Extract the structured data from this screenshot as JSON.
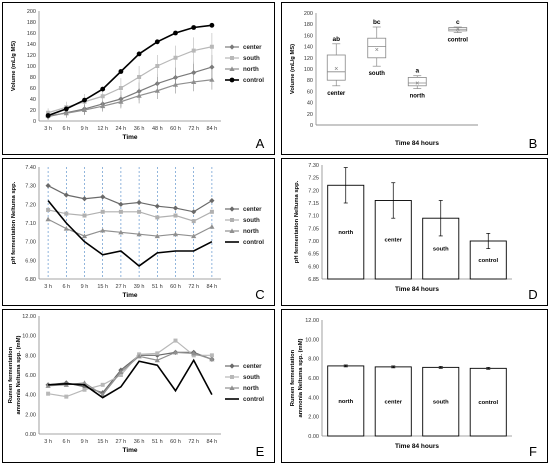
{
  "chart_data": [
    {
      "panel": "A",
      "type": "line",
      "xlabel": "Time",
      "ylabel": "Volume (mL/g MS)",
      "categories": [
        "3 h",
        "6 h",
        "9 h",
        "12 h",
        "24 h",
        "36 h",
        "48 h",
        "60 h",
        "72 h",
        "84 h"
      ],
      "ylim": [
        0,
        200
      ],
      "yticks": [
        0,
        20,
        40,
        60,
        80,
        100,
        120,
        140,
        160,
        180,
        200
      ],
      "legend_position": "right",
      "series": [
        {
          "name": "center",
          "color": "#7a7a7a",
          "marker": "diamond",
          "values": [
            8,
            15,
            22,
            31,
            40,
            54,
            68,
            79,
            88,
            98
          ],
          "err": [
            6,
            8,
            10,
            12,
            14,
            16,
            17,
            18,
            20,
            22
          ]
        },
        {
          "name": "south",
          "color": "#b8b8b8",
          "marker": "square",
          "values": [
            15,
            25,
            35,
            45,
            60,
            80,
            100,
            115,
            128,
            135
          ],
          "err": [
            8,
            10,
            14,
            16,
            18,
            20,
            20,
            22,
            24,
            25
          ]
        },
        {
          "name": "north",
          "color": "#8f8f8f",
          "marker": "triangle",
          "values": [
            10,
            14,
            20,
            27,
            35,
            46,
            55,
            66,
            71,
            75
          ],
          "err": [
            6,
            8,
            9,
            10,
            12,
            14,
            15,
            16,
            17,
            18
          ]
        },
        {
          "name": "control",
          "color": "#000000",
          "marker": "circle",
          "values": [
            10,
            22,
            38,
            58,
            90,
            122,
            144,
            160,
            170,
            174
          ],
          "err": [
            3,
            3,
            4,
            4,
            4,
            4,
            4,
            3,
            3,
            3
          ]
        }
      ]
    },
    {
      "panel": "B",
      "type": "box",
      "xlabel": "Time 84 hours",
      "ylabel": "Volume (mL/g MS)",
      "ylim": [
        0,
        200
      ],
      "yticks": [
        0,
        20,
        40,
        60,
        80,
        100,
        120,
        140,
        160,
        180,
        200
      ],
      "groups": [
        {
          "name": "center",
          "letter": "ab",
          "min": 70,
          "q1": 80,
          "median": 95,
          "q3": 125,
          "max": 145,
          "mean": 101
        },
        {
          "name": "south",
          "letter": "bc",
          "min": 105,
          "q1": 120,
          "median": 140,
          "q3": 155,
          "max": 175,
          "mean": 135
        },
        {
          "name": "north",
          "letter": "a",
          "min": 65,
          "q1": 70,
          "median": 75,
          "q3": 85,
          "max": 88,
          "mean": 75
        },
        {
          "name": "control",
          "letter": "c",
          "min": 165,
          "q1": 168,
          "median": 171,
          "q3": 174,
          "max": 175,
          "mean": 171
        }
      ]
    },
    {
      "panel": "C",
      "type": "line",
      "xlabel": "Time",
      "ylabel": "pH fermentation Neltuma spp.",
      "categories": [
        "3 h",
        "6 h",
        "9 h",
        "15 h",
        "27 h",
        "39 h",
        "51 h",
        "60 h",
        "72 h",
        "84 h"
      ],
      "ylim": [
        6.8,
        7.4
      ],
      "yticks": [
        6.8,
        6.9,
        7.0,
        7.1,
        7.2,
        7.3,
        7.4
      ],
      "legend_position": "right",
      "series": [
        {
          "name": "center",
          "color": "#6a6a6a",
          "marker": "diamond",
          "values": [
            7.3,
            7.25,
            7.23,
            7.24,
            7.2,
            7.21,
            7.19,
            7.18,
            7.16,
            7.22
          ]
        },
        {
          "name": "south",
          "color": "#b0b0b0",
          "marker": "square",
          "values": [
            7.17,
            7.15,
            7.14,
            7.16,
            7.16,
            7.16,
            7.13,
            7.14,
            7.11,
            7.16
          ]
        },
        {
          "name": "north",
          "color": "#909090",
          "marker": "triangle",
          "values": [
            7.12,
            7.07,
            7.03,
            7.06,
            7.05,
            7.04,
            7.03,
            7.04,
            7.03,
            7.08
          ]
        },
        {
          "name": "control",
          "color": "#000000",
          "marker": "none",
          "values": [
            7.22,
            7.1,
            7.0,
            6.93,
            6.95,
            6.87,
            6.94,
            6.95,
            6.95,
            7.0
          ]
        }
      ]
    },
    {
      "panel": "D",
      "type": "bar",
      "xlabel": "Time 84 hours",
      "ylabel": "pH fermentation Neltuma spp.",
      "categories": [
        "north",
        "center",
        "south",
        "control"
      ],
      "values": [
        7.22,
        7.16,
        7.09,
        7.0
      ],
      "err": [
        0.07,
        0.07,
        0.07,
        0.03
      ],
      "ylim": [
        6.85,
        7.3
      ],
      "yticks": [
        6.85,
        6.9,
        6.95,
        7.0,
        7.05,
        7.1,
        7.15,
        7.2,
        7.25,
        7.3
      ]
    },
    {
      "panel": "E",
      "type": "line",
      "xlabel": "Time",
      "ylabel_lines": [
        "Rumen fermentation",
        "ammonia Neltuma spp. (mM)"
      ],
      "categories": [
        "3 h",
        "6 h",
        "9 h",
        "15 h",
        "27 h",
        "36 h",
        "51 h",
        "60 h",
        "72 h",
        "84 h"
      ],
      "ylim": [
        0,
        12
      ],
      "yticks": [
        0,
        2,
        4,
        6,
        8,
        10,
        12
      ],
      "legend_position": "right",
      "series": [
        {
          "name": "center",
          "color": "#6a6a6a",
          "marker": "diamond",
          "values": [
            5.0,
            5.2,
            4.8,
            4.2,
            6.5,
            8.0,
            8.0,
            8.3,
            8.3,
            7.6
          ]
        },
        {
          "name": "south",
          "color": "#b8b8b8",
          "marker": "square",
          "values": [
            4.1,
            3.8,
            4.5,
            5.0,
            6.0,
            8.1,
            8.2,
            9.5,
            8.0,
            8.0
          ]
        },
        {
          "name": "north",
          "color": "#909090",
          "marker": "triangle",
          "values": [
            4.9,
            5.0,
            5.2,
            4.0,
            6.3,
            7.9,
            7.5,
            8.3,
            8.2,
            7.6
          ]
        },
        {
          "name": "control",
          "color": "#000000",
          "marker": "none",
          "values": [
            5.0,
            5.1,
            5.0,
            3.7,
            4.8,
            7.4,
            7.0,
            4.4,
            7.5,
            4.0
          ]
        }
      ]
    },
    {
      "panel": "F",
      "type": "bar",
      "xlabel": "Time 84 hours",
      "ylabel_lines": [
        "Rumen fermentation",
        "ammonia Neltuma spp. (mM)"
      ],
      "categories": [
        "north",
        "center",
        "south",
        "control"
      ],
      "values": [
        7.25,
        7.15,
        7.1,
        7.0
      ],
      "err": [
        0.1,
        0.1,
        0.1,
        0.1
      ],
      "ylim": [
        0,
        12
      ],
      "yticks": [
        0,
        2,
        4,
        6,
        8,
        10,
        12
      ]
    }
  ]
}
